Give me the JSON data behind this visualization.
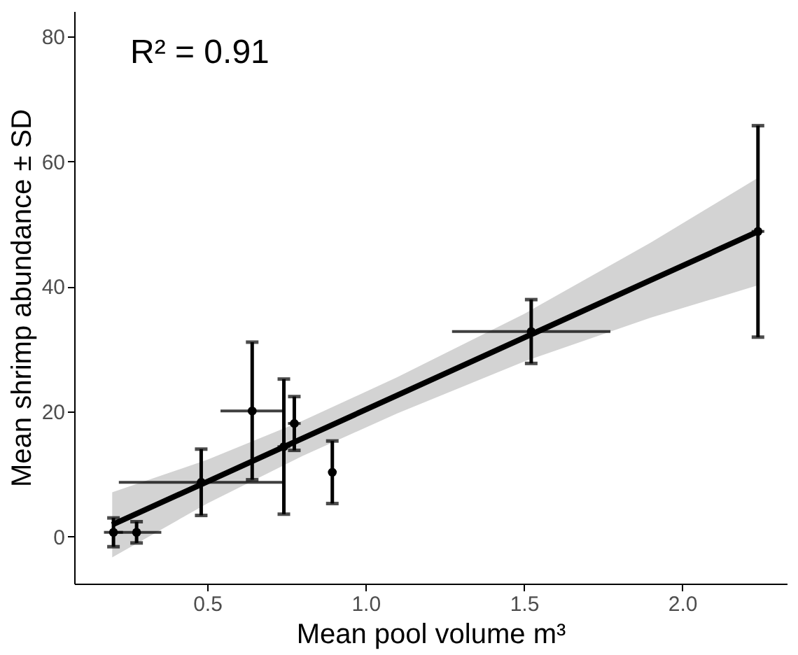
{
  "chart_data": {
    "type": "scatter",
    "xlabel": "Mean pool volume m³",
    "ylabel": "Mean shrimp abundance ± SD",
    "annotations": [
      "R² = 0.91"
    ],
    "series": [
      {
        "type": "line",
        "color": "#000000",
        "x": [
          0.2,
          0.5,
          0.8,
          1.1,
          1.5,
          1.9,
          2.24
        ],
        "values": [
          1.9,
          8.8,
          15.7,
          22.6,
          31.8,
          41.0,
          48.8
        ],
        "lower": [
          -3.3,
          5.3,
          12.9,
          19.7,
          28.0,
          35.0,
          40.2
        ],
        "upper": [
          7.1,
          12.3,
          18.5,
          25.5,
          35.6,
          47.0,
          57.4
        ]
      },
      {
        "color": "#000000",
        "marker": "circle",
        "x": [
          0.204,
          0.277,
          0.481,
          0.642,
          0.742,
          0.775,
          0.895,
          1.523,
          2.239
        ],
        "values": [
          0.7,
          0.7,
          8.7,
          20.1,
          14.4,
          18.1,
          10.3,
          32.8,
          48.8
        ],
        "errors": [
          2.3,
          1.7,
          5.3,
          11,
          10.8,
          4.3,
          5,
          5.1,
          16.9
        ],
        "xerrors": [
          0.03,
          0.078,
          0.26,
          0.1,
          0.02,
          0.02,
          null,
          0.25,
          0.02
        ]
      }
    ],
    "xlim": [
      0.08,
      2.33
    ],
    "xticks": [
      0.5,
      {
        "value": 1,
        "label": "1.0"
      },
      1.5,
      {
        "value": 2,
        "label": "2.0"
      }
    ],
    "ylim": [
      -7.5,
      84
    ],
    "yticks": [
      0,
      20,
      40,
      60,
      80
    ],
    "grid": false
  }
}
